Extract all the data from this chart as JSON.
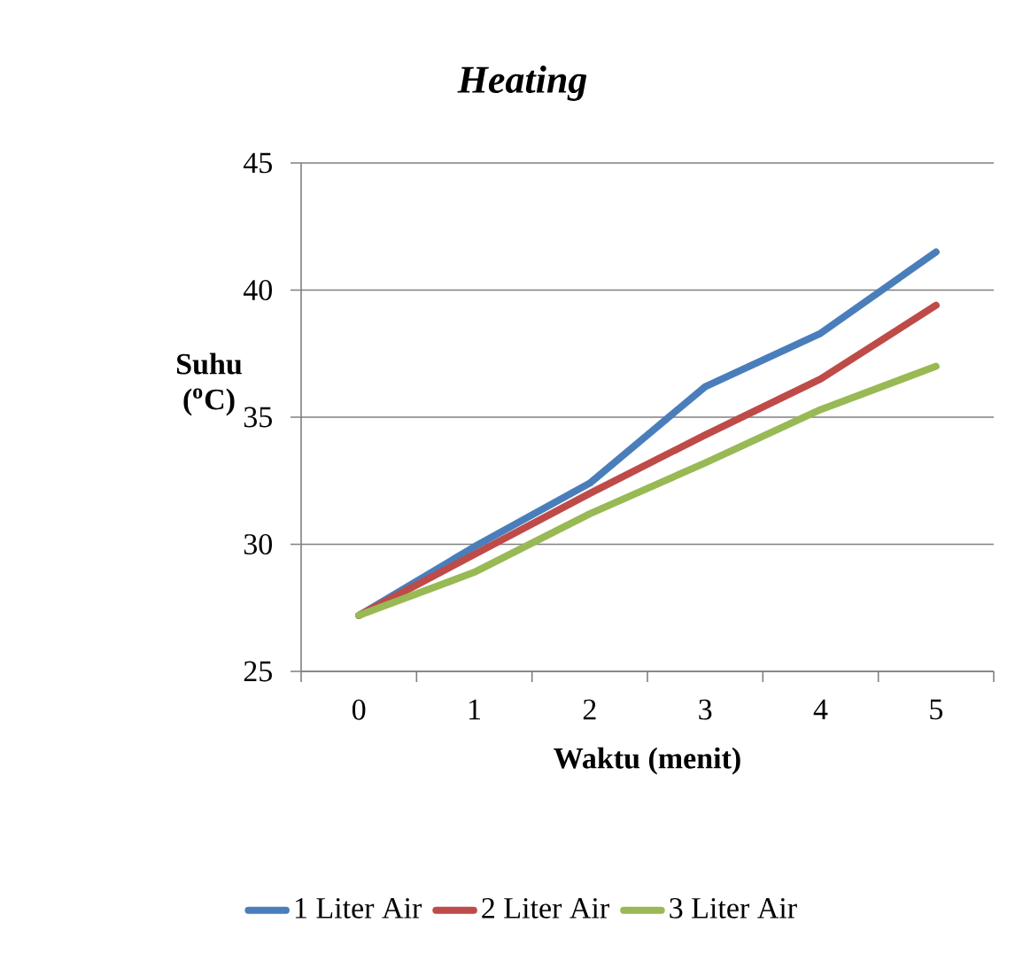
{
  "chart_data": {
    "type": "line",
    "title": "Heating",
    "xlabel": "Waktu (menit)",
    "ylabel": "Suhu ($^{o}$C)",
    "categories": [
      "0",
      "1",
      "2",
      "3",
      "4",
      "5"
    ],
    "series": [
      {
        "name": "1 Liter Air",
        "color": "#4a7ebb",
        "values": [
          27.2,
          29.9,
          32.4,
          36.2,
          38.3,
          41.5
        ]
      },
      {
        "name": "2 Liter Air",
        "color": "#be4b48",
        "values": [
          27.2,
          29.6,
          32.0,
          34.3,
          36.5,
          39.4
        ]
      },
      {
        "name": "3 Liter Air",
        "color": "#98b954",
        "values": [
          27.2,
          28.9,
          31.2,
          33.2,
          35.3,
          37.0
        ]
      }
    ],
    "ylim": [
      25,
      45
    ],
    "yticks": [
      25,
      30,
      35,
      40,
      45
    ],
    "grid": "y",
    "legend": "bottom",
    "marker": "none",
    "line_style": "solid"
  }
}
